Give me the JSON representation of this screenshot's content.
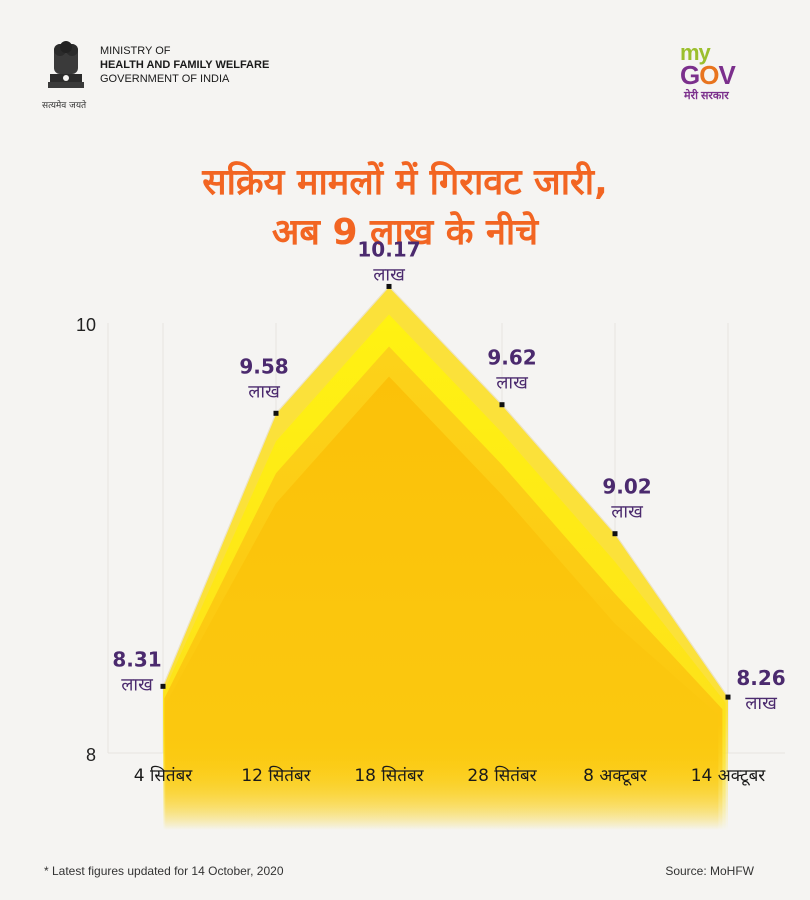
{
  "header": {
    "emblem_icon": "national-emblem-icon",
    "emblem_caption": "सत्यमेव जयते",
    "ministry_line1": "MINISTRY OF",
    "ministry_line2": "HEALTH AND FAMILY WELFARE",
    "ministry_line3": "GOVERNMENT OF INDIA",
    "mygov_my": "my",
    "mygov_g": "G",
    "mygov_o": "O",
    "mygov_v": "V",
    "mygov_tagline": "मेरी सरकार"
  },
  "colors": {
    "title": "#f26522",
    "label": "#4b2a6e",
    "fill_outer": "#fbe13a",
    "fill_mid": "#fdd51a",
    "fill_inner": "#fcc40f"
  },
  "chart_data": {
    "type": "area",
    "title_line1": "सक्रिय मामलों में गिरावट जारी,",
    "title_line2": "अब 9 लाख के नीचे",
    "categories": [
      "4 सितंबर",
      "12 सितंबर",
      "18 सितंबर",
      "28 सितंबर",
      "8 अक्टूबर",
      "14 अक्टूबर"
    ],
    "values": [
      8.31,
      9.58,
      10.17,
      9.62,
      9.02,
      8.26
    ],
    "value_labels": [
      "8.31",
      "9.58",
      "10.17",
      "9.62",
      "9.02",
      "8.26"
    ],
    "unit_label": "लाख",
    "ylim": [
      8,
      10
    ],
    "yticks": [
      "8",
      "10"
    ],
    "grid": true
  },
  "footer": {
    "footnote": "* Latest figures updated for 14 October, 2020",
    "source": "Source: MoHFW"
  }
}
